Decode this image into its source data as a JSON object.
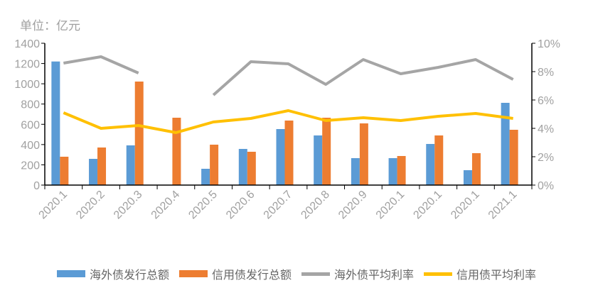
{
  "unit_label": "单位：亿元",
  "chart_data": {
    "type": "bar+line",
    "categories": [
      "2020.1",
      "2020.2",
      "2020.3",
      "2020.4",
      "2020.5",
      "2020.6",
      "2020.7",
      "2020.8",
      "2020.9",
      "2020.1",
      "2020.1",
      "2020.1",
      "2021.1"
    ],
    "left_axis": {
      "ylim": [
        0,
        1400
      ],
      "ticks": [
        0,
        200,
        400,
        600,
        800,
        1000,
        1200,
        1400
      ],
      "unit": "亿元"
    },
    "right_axis": {
      "ylim": [
        0,
        10
      ],
      "ticks": [
        "0%",
        "2%",
        "4%",
        "6%",
        "8%",
        "10%"
      ]
    },
    "series": [
      {
        "name": "海外债发行总额",
        "type": "bar",
        "axis": "left",
        "color": "#5b9bd5",
        "values": [
          1220,
          259,
          392,
          null,
          161,
          357,
          553,
          490,
          266,
          266,
          406,
          147,
          812
        ]
      },
      {
        "name": "信用债发行总额",
        "type": "bar",
        "axis": "left",
        "color": "#ed7d31",
        "values": [
          280,
          371,
          1022,
          665,
          399,
          329,
          637,
          665,
          609,
          287,
          490,
          315,
          546
        ]
      },
      {
        "name": "海外债平均利率",
        "type": "line",
        "axis": "right",
        "color": "#a5a5a5",
        "values": [
          8.6,
          9.05,
          7.9,
          null,
          6.35,
          8.7,
          8.55,
          7.1,
          8.85,
          7.85,
          8.3,
          8.85,
          7.45
        ]
      },
      {
        "name": "信用债平均利率",
        "type": "line",
        "axis": "right",
        "color": "#ffc000",
        "values": [
          5.1,
          4.0,
          4.2,
          3.7,
          4.45,
          4.7,
          5.25,
          4.55,
          4.75,
          4.55,
          4.85,
          5.05,
          4.7
        ]
      }
    ],
    "legend_position": "bottom",
    "grid": false
  }
}
